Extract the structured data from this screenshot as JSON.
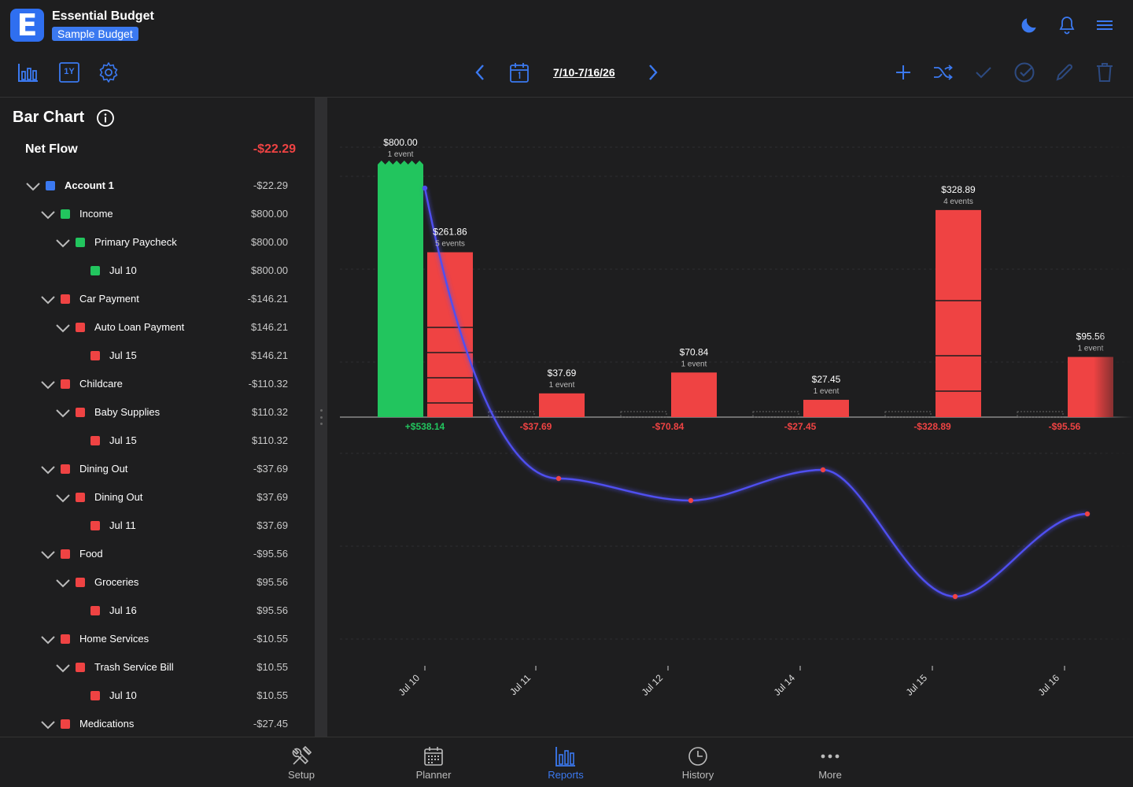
{
  "app": {
    "title": "Essential Budget",
    "budget_name": "Sample Budget",
    "logo_letter": "E",
    "accent": "#3b79f0"
  },
  "toolbar": {
    "left_icons": [
      "bar-chart-icon",
      "one-year-icon",
      "gear-icon"
    ],
    "one_year_label": "1Y",
    "date_range": "7/10-7/16/26",
    "right_icons": [
      "plus-icon",
      "shuffle-icon",
      "check-icon",
      "check-circle-icon",
      "pencil-icon",
      "trash-icon"
    ],
    "header_icons": [
      "moon-icon",
      "bell-icon",
      "menu-icon"
    ]
  },
  "panel": {
    "title": "Bar Chart",
    "net_flow_label": "Net Flow",
    "net_flow_value": "-$22.29",
    "rows": [
      {
        "label": "Account 1",
        "amount": "-$22.29",
        "level": 0,
        "color": "#3b79f0",
        "chevron": true,
        "bold": true
      },
      {
        "label": "Income",
        "amount": "$800.00",
        "level": 1,
        "color": "#22c55e",
        "chevron": true
      },
      {
        "label": "Primary Paycheck",
        "amount": "$800.00",
        "level": 2,
        "color": "#22c55e",
        "chevron": true
      },
      {
        "label": "Jul 10",
        "amount": "$800.00",
        "level": 3,
        "color": "#22c55e",
        "chevron": false
      },
      {
        "label": "Car Payment",
        "amount": "-$146.21",
        "level": 1,
        "color": "#ef4343",
        "chevron": true
      },
      {
        "label": "Auto Loan Payment",
        "amount": "$146.21",
        "level": 2,
        "color": "#ef4343",
        "chevron": true
      },
      {
        "label": "Jul 15",
        "amount": "$146.21",
        "level": 3,
        "color": "#ef4343",
        "chevron": false
      },
      {
        "label": "Childcare",
        "amount": "-$110.32",
        "level": 1,
        "color": "#ef4343",
        "chevron": true
      },
      {
        "label": "Baby Supplies",
        "amount": "$110.32",
        "level": 2,
        "color": "#ef4343",
        "chevron": true
      },
      {
        "label": "Jul 15",
        "amount": "$110.32",
        "level": 3,
        "color": "#ef4343",
        "chevron": false
      },
      {
        "label": "Dining Out",
        "amount": "-$37.69",
        "level": 1,
        "color": "#ef4343",
        "chevron": true
      },
      {
        "label": "Dining Out",
        "amount": "$37.69",
        "level": 2,
        "color": "#ef4343",
        "chevron": true
      },
      {
        "label": "Jul 11",
        "amount": "$37.69",
        "level": 3,
        "color": "#ef4343",
        "chevron": false
      },
      {
        "label": "Food",
        "amount": "-$95.56",
        "level": 1,
        "color": "#ef4343",
        "chevron": true
      },
      {
        "label": "Groceries",
        "amount": "$95.56",
        "level": 2,
        "color": "#ef4343",
        "chevron": true
      },
      {
        "label": "Jul 16",
        "amount": "$95.56",
        "level": 3,
        "color": "#ef4343",
        "chevron": false
      },
      {
        "label": "Home Services",
        "amount": "-$10.55",
        "level": 1,
        "color": "#ef4343",
        "chevron": true
      },
      {
        "label": "Trash Service Bill",
        "amount": "$10.55",
        "level": 2,
        "color": "#ef4343",
        "chevron": true
      },
      {
        "label": "Jul 10",
        "amount": "$10.55",
        "level": 3,
        "color": "#ef4343",
        "chevron": false
      },
      {
        "label": "Medications",
        "amount": "-$27.45",
        "level": 1,
        "color": "#ef4343",
        "chevron": true
      }
    ]
  },
  "chart_data": {
    "type": "bar",
    "categories": [
      "Jul 10",
      "Jul 11",
      "Jul 12",
      "Jul 14",
      "Jul 15",
      "Jul 16"
    ],
    "income_bar": {
      "value": 800.0,
      "label": "$800.00",
      "events": "1 event",
      "color": "#22c55e"
    },
    "expense_bars": [
      {
        "category": "Jul 10",
        "value": 261.86,
        "label": "$261.86",
        "events": "5 events",
        "segments": 5
      },
      {
        "category": "Jul 11",
        "value": 37.69,
        "label": "$37.69",
        "events": "1 event",
        "segments": 1
      },
      {
        "category": "Jul 12",
        "value": 70.84,
        "label": "$70.84",
        "events": "1 event",
        "segments": 1
      },
      {
        "category": "Jul 14",
        "value": 27.45,
        "label": "$27.45",
        "events": "1 event",
        "segments": 1
      },
      {
        "category": "Jul 15",
        "value": 328.89,
        "label": "$328.89",
        "events": "4 events",
        "segments": 4
      },
      {
        "category": "Jul 16",
        "value": 95.56,
        "label": "$95.56",
        "events": "1 event",
        "segments": 1
      }
    ],
    "net_labels": [
      "+$538.14",
      "-$37.69",
      "-$70.84",
      "-$27.45",
      "-$328.89",
      "-$95.56"
    ],
    "net_colors": [
      "#22c55e",
      "#ef4343",
      "#ef4343",
      "#ef4343",
      "#ef4343",
      "#ef4343"
    ],
    "balance_line_values": [
      538.14,
      500.45,
      429.61,
      402.16,
      73.27,
      -22.29
    ],
    "expense_color": "#ef4343",
    "line_color": "#4f4ff0"
  },
  "bottom_nav": [
    {
      "label": "Setup",
      "icon": "tools-icon",
      "active": false
    },
    {
      "label": "Planner",
      "icon": "calendar-icon",
      "active": false
    },
    {
      "label": "Reports",
      "icon": "bar-chart-icon",
      "active": true
    },
    {
      "label": "History",
      "icon": "clock-icon",
      "active": false
    },
    {
      "label": "More",
      "icon": "more-icon",
      "active": false
    }
  ]
}
